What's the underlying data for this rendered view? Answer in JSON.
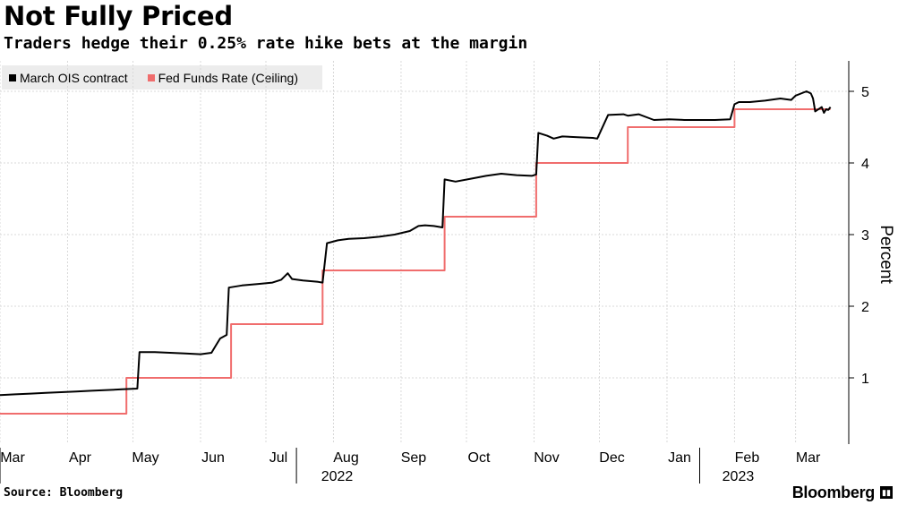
{
  "chart_data": {
    "type": "line",
    "title": "Not Fully Priced",
    "subtitle": "Traders hedge their 0.25% rate hike bets at the margin",
    "ylabel": "Percent",
    "ylim": [
      0,
      5.4
    ],
    "yticks": [
      1,
      2,
      3,
      4,
      5
    ],
    "xlim": [
      "2022-03-01",
      "2023-03-18"
    ],
    "xticks": [
      {
        "label": "Mar",
        "date": "2022-03-01"
      },
      {
        "label": "Apr",
        "date": "2022-04-01"
      },
      {
        "label": "May",
        "date": "2022-05-01"
      },
      {
        "label": "Jun",
        "date": "2022-06-01"
      },
      {
        "label": "Jul",
        "date": "2022-07-01"
      },
      {
        "label": "Aug",
        "date": "2022-08-01"
      },
      {
        "label": "Sep",
        "date": "2022-09-01"
      },
      {
        "label": "Oct",
        "date": "2022-10-01"
      },
      {
        "label": "Nov",
        "date": "2022-11-01"
      },
      {
        "label": "Dec",
        "date": "2022-12-01"
      },
      {
        "label": "Jan",
        "date": "2023-01-01"
      },
      {
        "label": "Feb",
        "date": "2023-02-01"
      },
      {
        "label": "Mar",
        "date": "2023-03-01"
      }
    ],
    "year_labels": [
      {
        "label": "2022",
        "date": "2022-08-01"
      },
      {
        "label": "2023",
        "date": "2023-02-01"
      }
    ],
    "grid": true,
    "legend_position": "top-left",
    "series": [
      {
        "name": "March OIS contract",
        "color": "#000000",
        "step": false,
        "x": [
          "2022-03-01",
          "2022-03-08",
          "2022-03-15",
          "2022-03-22",
          "2022-03-29",
          "2022-04-05",
          "2022-04-12",
          "2022-04-19",
          "2022-04-26",
          "2022-05-03",
          "2022-05-04",
          "2022-05-11",
          "2022-05-18",
          "2022-05-25",
          "2022-06-01",
          "2022-06-06",
          "2022-06-08",
          "2022-06-10",
          "2022-06-13",
          "2022-06-14",
          "2022-06-20",
          "2022-06-27",
          "2022-07-04",
          "2022-07-08",
          "2022-07-11",
          "2022-07-13",
          "2022-07-18",
          "2022-07-25",
          "2022-07-27",
          "2022-07-29",
          "2022-08-03",
          "2022-08-08",
          "2022-08-15",
          "2022-08-22",
          "2022-08-29",
          "2022-09-05",
          "2022-09-09",
          "2022-09-12",
          "2022-09-16",
          "2022-09-20",
          "2022-09-21",
          "2022-09-26",
          "2022-10-03",
          "2022-10-10",
          "2022-10-17",
          "2022-10-24",
          "2022-10-31",
          "2022-11-02",
          "2022-11-03",
          "2022-11-07",
          "2022-11-10",
          "2022-11-14",
          "2022-11-21",
          "2022-11-28",
          "2022-11-30",
          "2022-12-05",
          "2022-12-12",
          "2022-12-14",
          "2022-12-19",
          "2022-12-26",
          "2023-01-02",
          "2023-01-09",
          "2023-01-16",
          "2023-01-23",
          "2023-01-30",
          "2023-02-01",
          "2023-02-03",
          "2023-02-08",
          "2023-02-15",
          "2023-02-22",
          "2023-02-27",
          "2023-03-01",
          "2023-03-06",
          "2023-03-08",
          "2023-03-09",
          "2023-03-10",
          "2023-03-13",
          "2023-03-14",
          "2023-03-15",
          "2023-03-16",
          "2023-03-17"
        ],
        "values": [
          0.76,
          0.77,
          0.78,
          0.79,
          0.8,
          0.81,
          0.82,
          0.83,
          0.84,
          0.85,
          1.36,
          1.36,
          1.35,
          1.34,
          1.33,
          1.35,
          1.45,
          1.55,
          1.6,
          2.26,
          2.29,
          2.31,
          2.33,
          2.37,
          2.46,
          2.38,
          2.36,
          2.34,
          2.33,
          2.88,
          2.92,
          2.94,
          2.95,
          2.97,
          3.0,
          3.05,
          3.12,
          3.13,
          3.12,
          3.1,
          3.77,
          3.74,
          3.78,
          3.82,
          3.85,
          3.83,
          3.82,
          3.84,
          4.42,
          4.38,
          4.34,
          4.37,
          4.36,
          4.35,
          4.34,
          4.67,
          4.68,
          4.66,
          4.68,
          4.6,
          4.61,
          4.6,
          4.6,
          4.6,
          4.61,
          4.82,
          4.85,
          4.85,
          4.87,
          4.9,
          4.88,
          4.94,
          5.0,
          4.97,
          4.9,
          4.72,
          4.78,
          4.7,
          4.75,
          4.74,
          4.78
        ]
      },
      {
        "name": "Fed Funds Rate (Ceiling)",
        "color": "#f06d6d",
        "step": true,
        "x": [
          "2022-03-01",
          "2022-04-28",
          "2022-06-15",
          "2022-07-27",
          "2022-09-21",
          "2022-11-02",
          "2022-12-14",
          "2023-02-01",
          "2023-03-17"
        ],
        "values": [
          0.5,
          1.0,
          1.75,
          2.5,
          3.25,
          4.0,
          4.5,
          4.75,
          4.75
        ]
      }
    ]
  },
  "footer": {
    "source": "Source: Bloomberg",
    "brand": "Bloomberg"
  }
}
